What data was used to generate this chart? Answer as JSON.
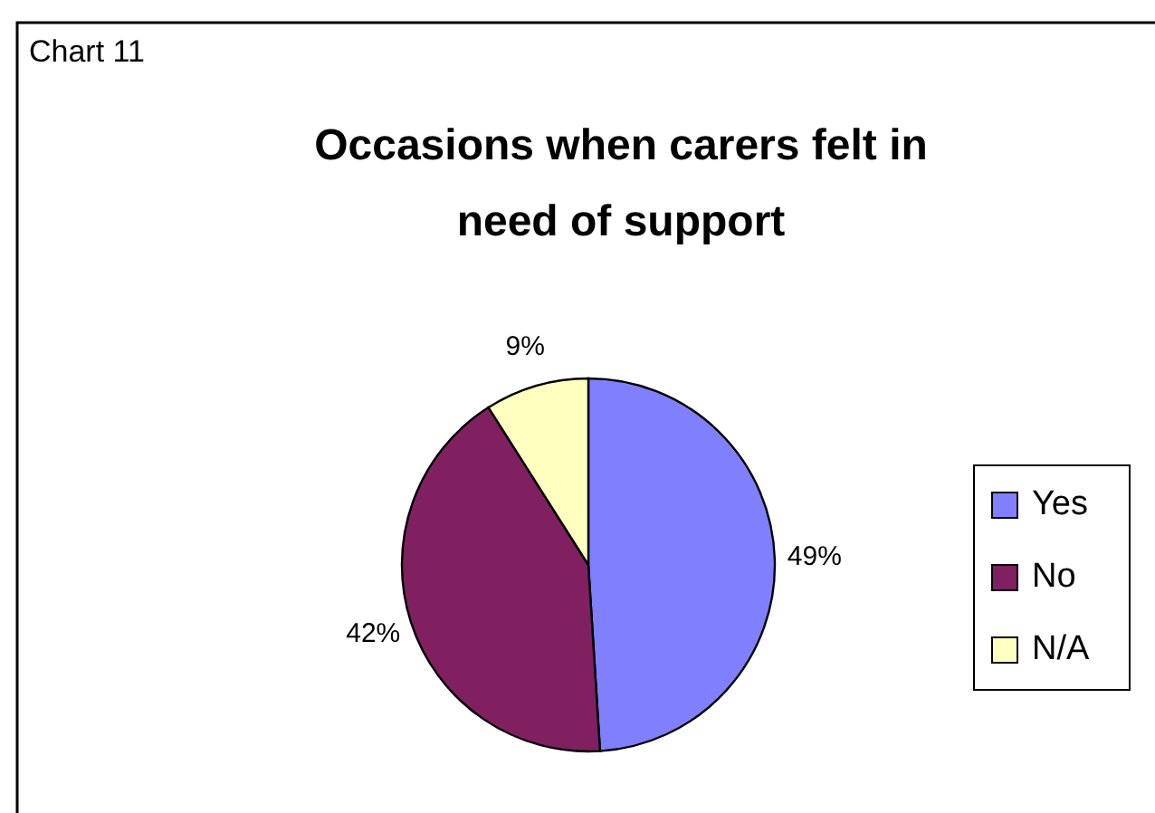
{
  "chart_data": {
    "type": "pie",
    "title": "Occasions when carers felt in need of support",
    "annotations": [
      "Chart 11"
    ],
    "categories": [
      "Yes",
      "No",
      "N/A"
    ],
    "values": [
      49,
      42,
      9
    ],
    "value_labels": [
      "49%",
      "42%",
      "9%"
    ],
    "colors": [
      "#8080ff",
      "#802060",
      "#ffffc0"
    ],
    "legend": "right"
  }
}
